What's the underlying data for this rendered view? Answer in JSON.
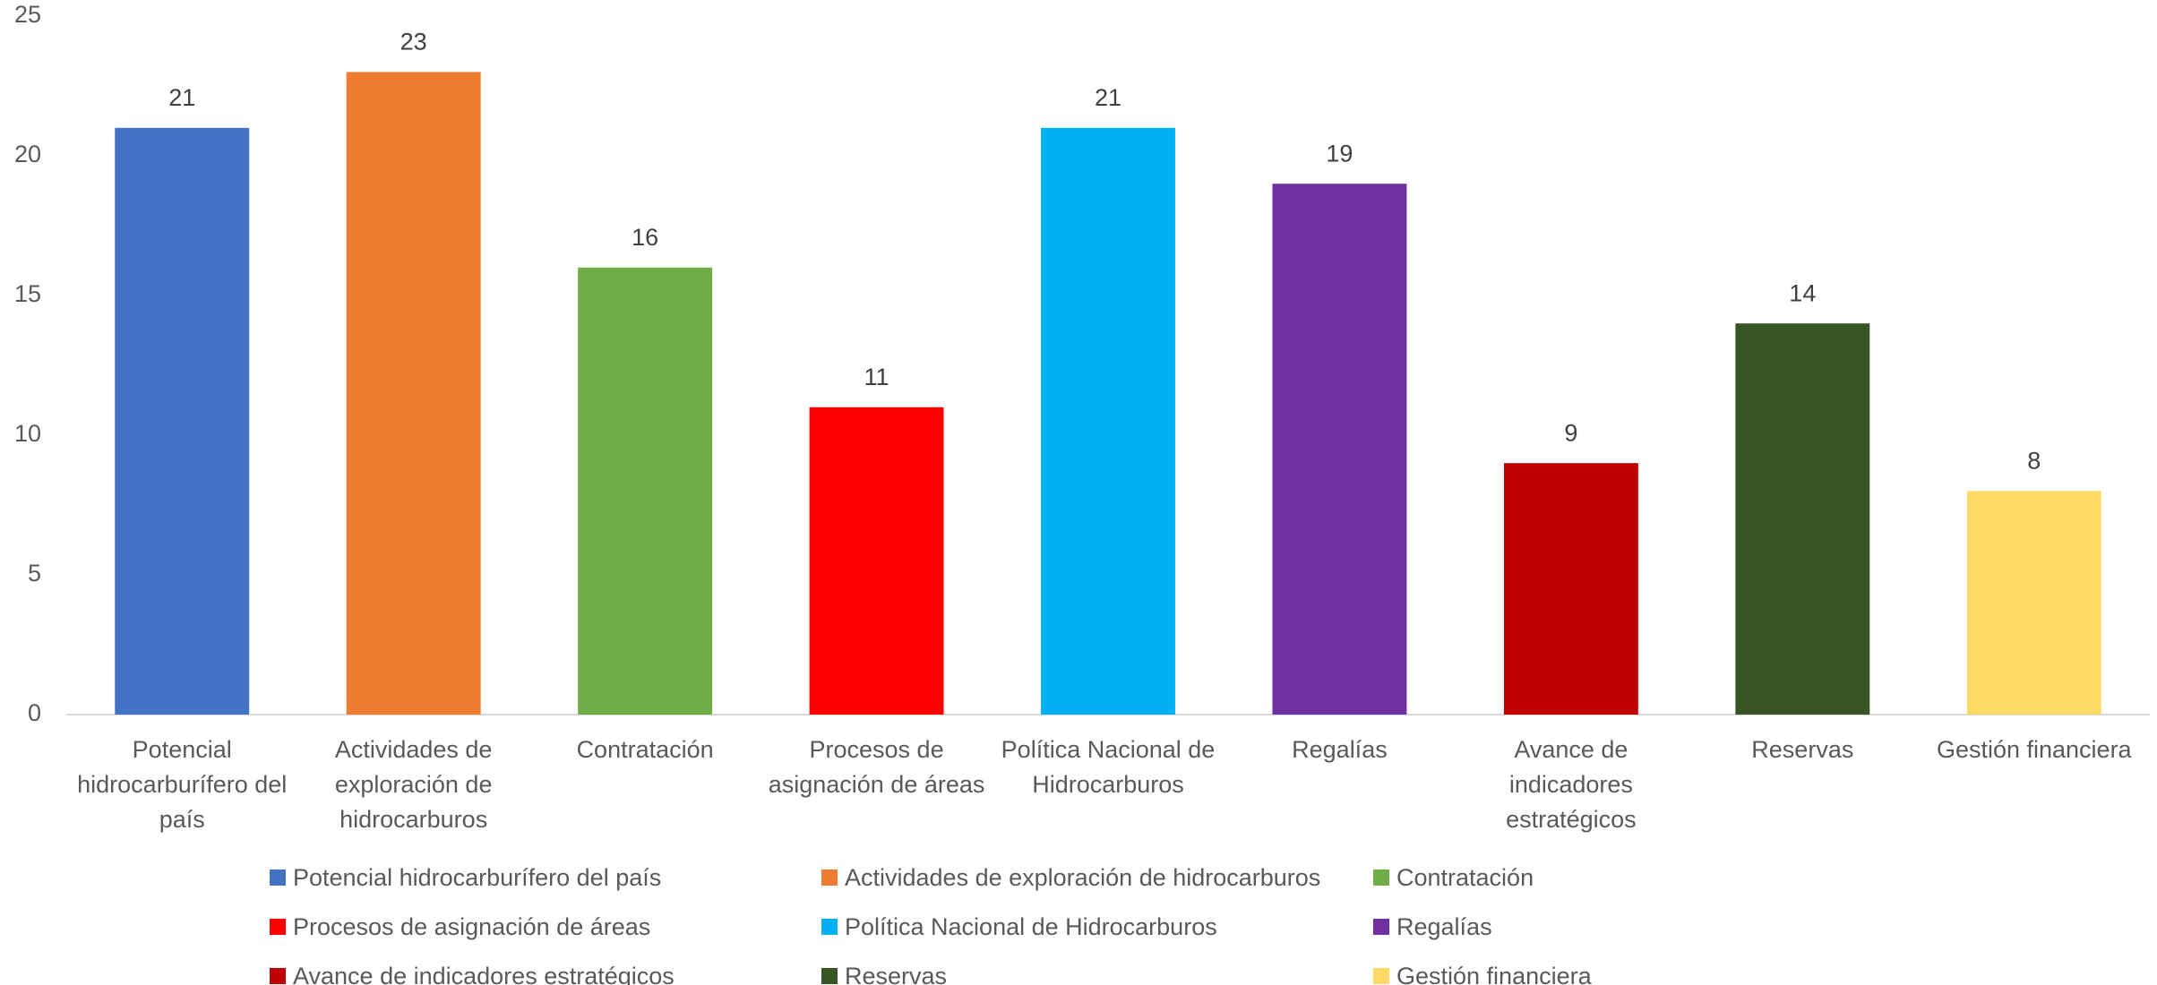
{
  "chart_data": {
    "type": "bar",
    "categories": [
      "Potencial hidrocarburífero del país",
      "Actividades de exploración de hidrocarburos",
      "Contratación",
      "Procesos de asignación de áreas",
      "Política Nacional de Hidrocarburos",
      "Regalías",
      "Avance de indicadores estratégicos",
      "Reservas",
      "Gestión financiera"
    ],
    "values": [
      21,
      23,
      16,
      11,
      21,
      19,
      9,
      14,
      8
    ],
    "colors": [
      "#4472c4",
      "#ed7d31",
      "#70ad47",
      "#ff0000",
      "#00b0f0",
      "#7030a0",
      "#c00000",
      "#375623",
      "#ffd966"
    ],
    "ylim": [
      0,
      25
    ],
    "yticks": [
      0,
      5,
      10,
      15,
      20,
      25
    ],
    "grid": false,
    "legend": "bottom"
  }
}
